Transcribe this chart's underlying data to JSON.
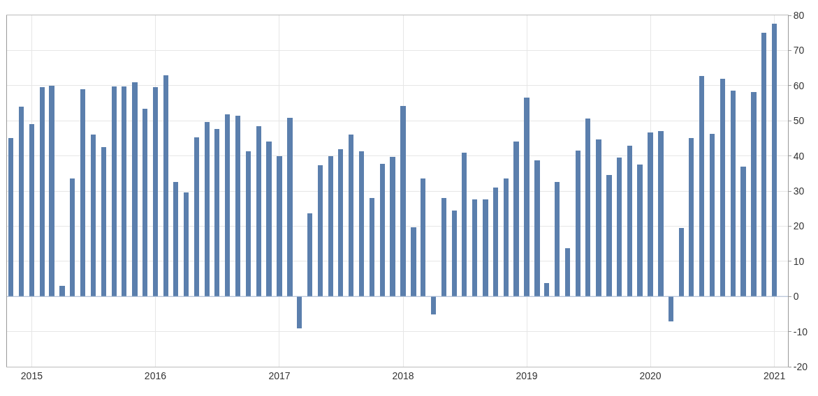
{
  "chart_data": {
    "type": "bar",
    "x": [
      "2014-11",
      "2014-12",
      "2015-01",
      "2015-02",
      "2015-03",
      "2015-04",
      "2015-05",
      "2015-06",
      "2015-07",
      "2015-08",
      "2015-09",
      "2015-10",
      "2015-11",
      "2015-12",
      "2016-01",
      "2016-02",
      "2016-03",
      "2016-04",
      "2016-05",
      "2016-06",
      "2016-07",
      "2016-08",
      "2016-09",
      "2016-10",
      "2016-11",
      "2016-12",
      "2017-01",
      "2017-02",
      "2017-03",
      "2017-04",
      "2017-05",
      "2017-06",
      "2017-07",
      "2017-08",
      "2017-09",
      "2017-10",
      "2017-11",
      "2017-12",
      "2018-01",
      "2018-02",
      "2018-03",
      "2018-04",
      "2018-05",
      "2018-06",
      "2018-07",
      "2018-08",
      "2018-09",
      "2018-10",
      "2018-11",
      "2018-12",
      "2019-01",
      "2019-02",
      "2019-03",
      "2019-04",
      "2019-05",
      "2019-06",
      "2019-07",
      "2019-08",
      "2019-09",
      "2019-10",
      "2019-11",
      "2019-12",
      "2020-01",
      "2020-02",
      "2020-03",
      "2020-04",
      "2020-05",
      "2020-06",
      "2020-07",
      "2020-08",
      "2020-09",
      "2020-10",
      "2020-11",
      "2020-12",
      "2021-01"
    ],
    "values": [
      45,
      54,
      49,
      59.5,
      60,
      3,
      33.5,
      59,
      46,
      42.5,
      59.7,
      59.7,
      61,
      53.5,
      59.5,
      63,
      32.5,
      29.6,
      45.3,
      49.6,
      47.6,
      51.9,
      51.5,
      41.4,
      48.5,
      44,
      40,
      50.8,
      -9,
      23.7,
      37.4,
      40,
      42,
      46,
      41.4,
      28,
      37.8,
      39.8,
      54.2,
      19.7,
      33.5,
      -5.2,
      28,
      24.5,
      41,
      27.6,
      27.6,
      31,
      33.5,
      44,
      56.6,
      38.7,
      3.8,
      32.6,
      13.7,
      41.6,
      50.6,
      44.7,
      34.5,
      39.6,
      42.8,
      37.6,
      46.7,
      47.1,
      -7.1,
      19.5,
      45,
      62.8,
      46.3,
      62,
      58.5,
      36.9,
      58.2,
      75,
      77.7
    ],
    "color": "#5b7fad",
    "xlim": [
      "2014-10-20",
      "2021-02-10"
    ],
    "xticks": [
      "2015",
      "2016",
      "2017",
      "2018",
      "2019",
      "2020",
      "2021"
    ],
    "ylim": [
      -20,
      80
    ],
    "yticks": [
      -20,
      -10,
      0,
      10,
      20,
      30,
      40,
      50,
      60,
      70,
      80
    ],
    "ref_lines": [
      {
        "axis": "y",
        "value": 0,
        "color": "#a9bcd6"
      }
    ],
    "grid": true
  }
}
